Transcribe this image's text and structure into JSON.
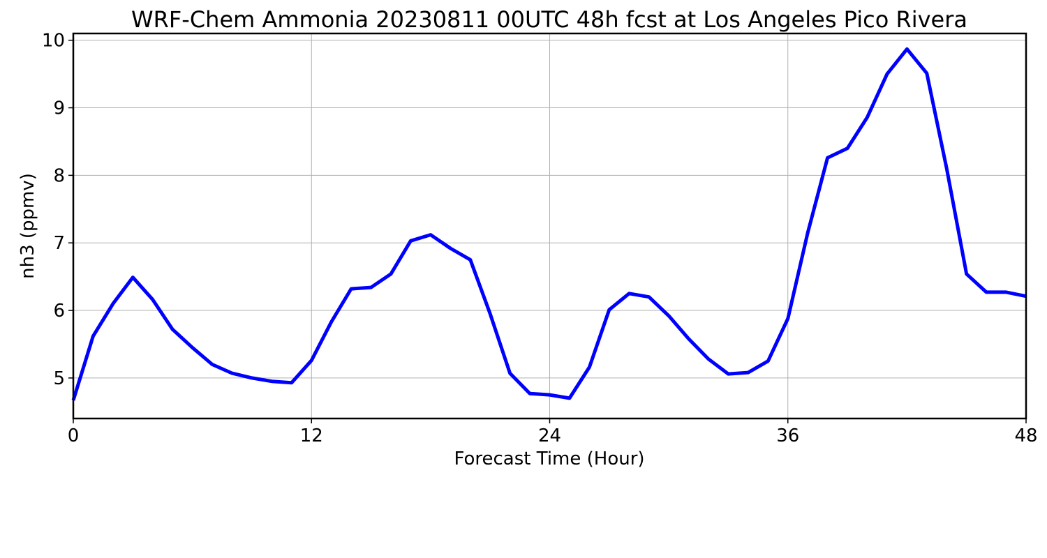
{
  "chart_data": {
    "type": "line",
    "title": "WRF-Chem Ammonia  20230811 00UTC 48h fcst at Los Angeles Pico Rivera",
    "xlabel": "Forecast Time (Hour)",
    "ylabel": "nh3  (ppmv)",
    "xlim": [
      0,
      48
    ],
    "ylim": [
      4.4,
      10.1
    ],
    "xticks": [
      0,
      12,
      24,
      36,
      48
    ],
    "yticks": [
      5,
      6,
      7,
      8,
      9,
      10
    ],
    "grid": true,
    "legend": "none",
    "series": [
      {
        "color": "#0000ff",
        "x": [
          0,
          1,
          2,
          3,
          4,
          5,
          6,
          7,
          8,
          9,
          10,
          11,
          12,
          13,
          14,
          15,
          16,
          17,
          18,
          19,
          20,
          21,
          22,
          23,
          24,
          25,
          26,
          27,
          28,
          29,
          30,
          31,
          32,
          33,
          34,
          35,
          36,
          37,
          38,
          39,
          40,
          41,
          42,
          43,
          44,
          45,
          46,
          47,
          48
        ],
        "y": [
          4.67,
          5.62,
          6.1,
          6.49,
          6.16,
          5.72,
          5.45,
          5.2,
          5.07,
          5.0,
          4.95,
          4.93,
          5.26,
          5.83,
          6.32,
          6.34,
          6.54,
          7.03,
          7.12,
          6.92,
          6.75,
          5.95,
          5.07,
          4.77,
          4.75,
          4.7,
          5.16,
          6.01,
          6.25,
          6.2,
          5.92,
          5.58,
          5.28,
          5.06,
          5.08,
          5.25,
          5.88,
          7.15,
          8.26,
          8.4,
          8.86,
          9.5,
          9.87,
          9.51,
          8.1,
          6.54,
          6.27,
          6.27,
          6.21
        ]
      }
    ]
  }
}
